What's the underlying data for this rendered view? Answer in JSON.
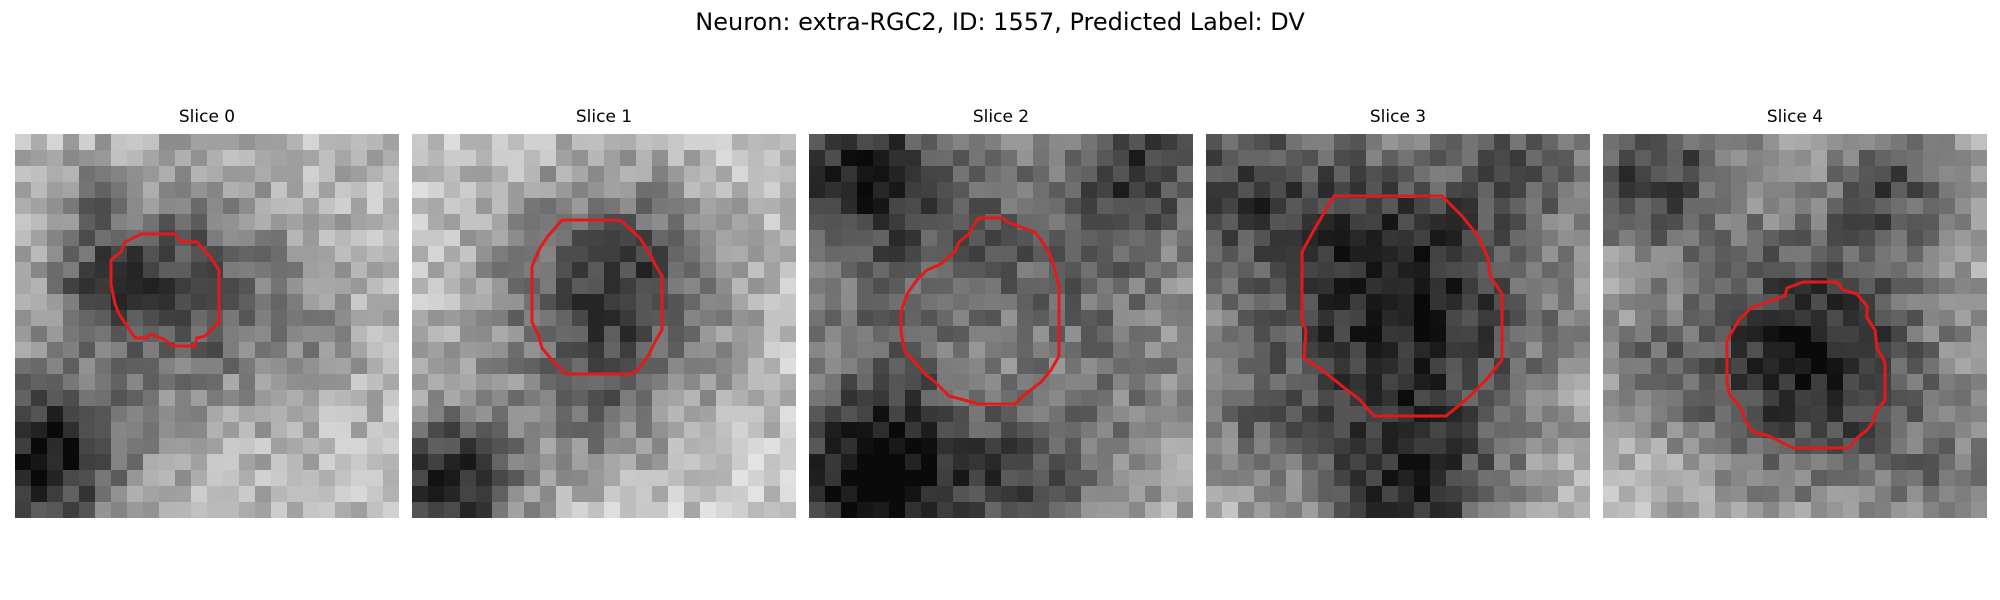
{
  "figure": {
    "title": "Neuron: extra-RGC2, ID: 1557, Predicted Label: DV"
  },
  "colors": {
    "contour": "#e31a1c",
    "background": "#ffffff"
  },
  "panels": [
    {
      "title": "Slice 0"
    },
    {
      "title": "Slice 1"
    },
    {
      "title": "Slice 2"
    },
    {
      "title": "Slice 3"
    },
    {
      "title": "Slice 4"
    }
  ]
}
